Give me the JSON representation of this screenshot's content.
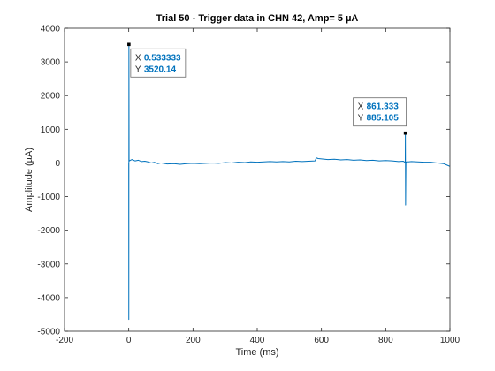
{
  "chart_data": {
    "type": "line",
    "title": "Trial 50 - Trigger data in CHN 42, Amp= 5 µA",
    "xlabel": "Time (ms)",
    "ylabel": "Amplitude (µA)",
    "xlim": [
      -200,
      1000
    ],
    "ylim": [
      -5000,
      4000
    ],
    "xticks": [
      -200,
      0,
      200,
      400,
      600,
      800,
      1000
    ],
    "yticks": [
      -5000,
      -4000,
      -3000,
      -2000,
      -1000,
      0,
      1000,
      2000,
      3000,
      4000
    ],
    "grid": false,
    "line_color": "#0072bd",
    "series": [
      {
        "x": [
          0,
          0.2,
          0.533333,
          1,
          2,
          5,
          10,
          20,
          30,
          40,
          50,
          60,
          70,
          80,
          90,
          100,
          120,
          140,
          160,
          180,
          200,
          220,
          240,
          260,
          280,
          300,
          320,
          340,
          360,
          380,
          400,
          420,
          440,
          460,
          480,
          500,
          520,
          540,
          560,
          580,
          584,
          590,
          600,
          620,
          640,
          660,
          680,
          700,
          720,
          740,
          760,
          780,
          800,
          820,
          840,
          855,
          860,
          861,
          861.333,
          862,
          863,
          864,
          866,
          870,
          880,
          900,
          920,
          940,
          960,
          980,
          990,
          1000
        ],
        "y": [
          0,
          -4650,
          3520.14,
          100,
          60,
          80,
          100,
          60,
          80,
          40,
          50,
          30,
          0,
          20,
          -20,
          0,
          -30,
          -20,
          -40,
          -20,
          -10,
          -20,
          -10,
          0,
          -10,
          10,
          0,
          20,
          10,
          30,
          20,
          30,
          40,
          30,
          40,
          30,
          50,
          40,
          50,
          60,
          150,
          130,
          120,
          100,
          110,
          90,
          100,
          80,
          90,
          70,
          80,
          60,
          70,
          60,
          40,
          50,
          20,
          40,
          885.105,
          -1250,
          30,
          20,
          40,
          30,
          40,
          30,
          20,
          20,
          0,
          -20,
          -60,
          -100
        ]
      }
    ],
    "datatips": [
      {
        "x_label": "X",
        "x_value": "0.533333",
        "y_label": "Y",
        "y_value": "3520.14",
        "x": 0.533333,
        "y": 3520.14
      },
      {
        "x_label": "X",
        "x_value": "861.333",
        "y_label": "Y",
        "y_value": "885.105",
        "x": 861.333,
        "y": 885.105
      }
    ]
  }
}
